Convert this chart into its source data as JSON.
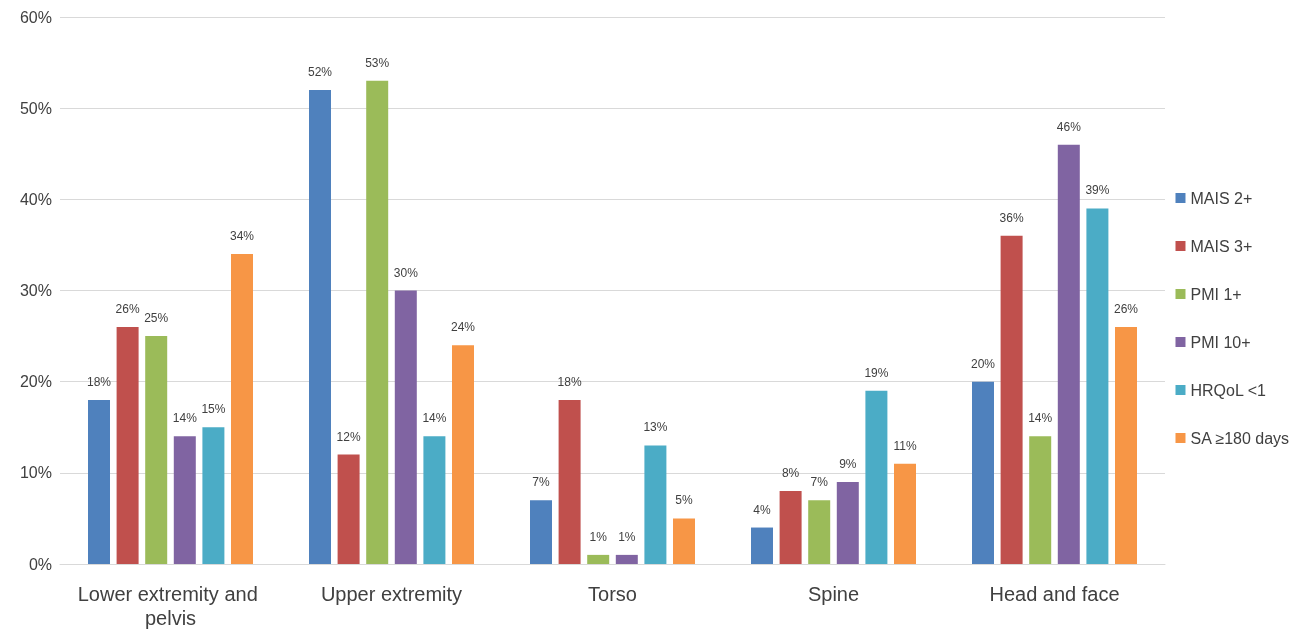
{
  "chart_data": {
    "type": "bar",
    "categories": [
      "Lower extremity and pelvis",
      "Upper extremity",
      "Torso",
      "Spine",
      "Head and face"
    ],
    "series": [
      {
        "name": "MAIS 2+",
        "color": "#4f81bd",
        "values": [
          18,
          52,
          7,
          4,
          20
        ],
        "value_labels": [
          "18%",
          "52%",
          "7%",
          "4%",
          "20%"
        ]
      },
      {
        "name": "MAIS 3+",
        "color": "#c0504d",
        "values": [
          26,
          12,
          18,
          8,
          36
        ],
        "value_labels": [
          "26%",
          "12%",
          "18%",
          "8%",
          "36%"
        ]
      },
      {
        "name": "PMI 1+",
        "color": "#9bbb59",
        "values": [
          25,
          53,
          1,
          7,
          14
        ],
        "value_labels": [
          "25%",
          "53%",
          "1%",
          "7%",
          "14%"
        ]
      },
      {
        "name": "PMI 10+",
        "color": "#8064a2",
        "values": [
          14,
          30,
          1,
          9,
          46
        ],
        "value_labels": [
          "14%",
          "30%",
          "1%",
          "9%",
          "46%"
        ]
      },
      {
        "name": "HRQoL <1",
        "color": "#4bacc6",
        "values": [
          15,
          14,
          13,
          19,
          39
        ],
        "value_labels": [
          "15%",
          "14%",
          "13%",
          "19%",
          "39%"
        ]
      },
      {
        "name": "SA ≥180 days",
        "color": "#f79646",
        "values": [
          34,
          24,
          5,
          11,
          26
        ],
        "value_labels": [
          "34%",
          "24%",
          "5%",
          "11%",
          "26%"
        ]
      }
    ],
    "ylim": [
      0,
      60
    ],
    "yticks": [
      {
        "value": 0,
        "label": "0%"
      },
      {
        "value": 10,
        "label": "10%"
      },
      {
        "value": 20,
        "label": "20%"
      },
      {
        "value": 30,
        "label": "30%"
      },
      {
        "value": 40,
        "label": "40%"
      },
      {
        "value": 50,
        "label": "50%"
      },
      {
        "value": 60,
        "label": "60%"
      }
    ],
    "grid": "y",
    "legend": "right"
  }
}
